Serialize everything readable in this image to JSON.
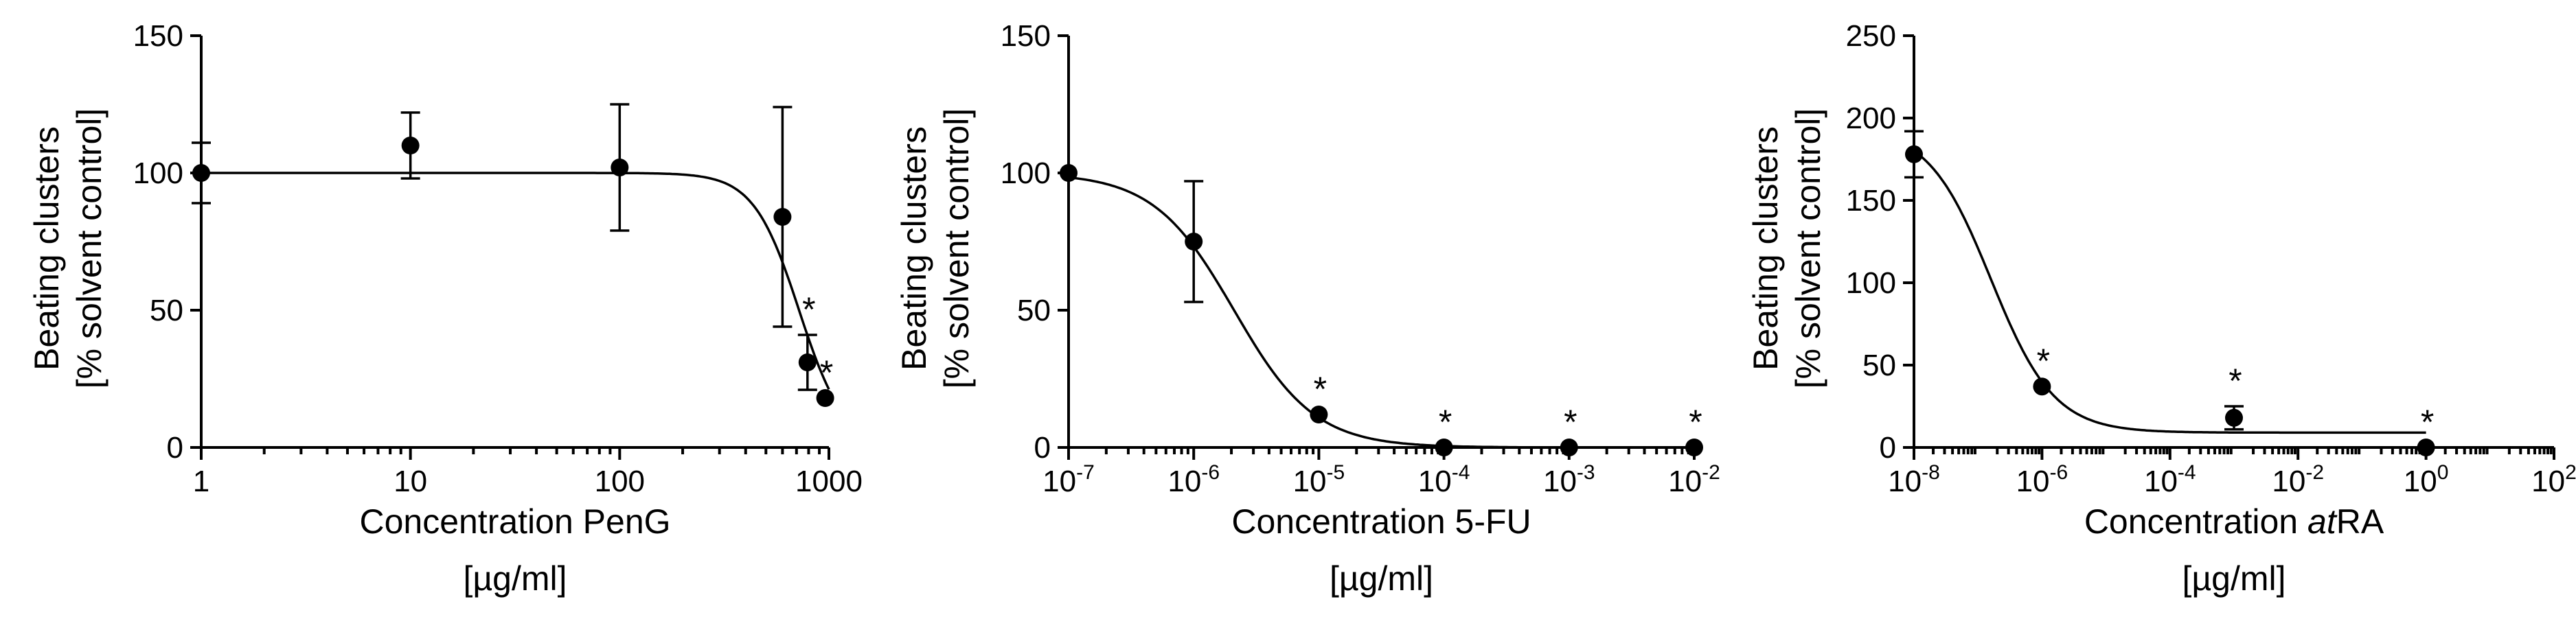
{
  "chart_data": [
    {
      "type": "scatter",
      "x_scale": "log",
      "xlim": [
        1,
        1000
      ],
      "ylim": [
        0,
        150
      ],
      "x_ticks": [
        {
          "value": 1,
          "label": "1"
        },
        {
          "value": 10,
          "label": "10"
        },
        {
          "value": 100,
          "label": "100"
        },
        {
          "value": 1000,
          "label": "1000"
        }
      ],
      "y_ticks": [
        {
          "value": 0,
          "label": "0"
        },
        {
          "value": 50,
          "label": "50"
        },
        {
          "value": 100,
          "label": "100"
        },
        {
          "value": 150,
          "label": "150"
        }
      ],
      "xlabel_lines": [
        "Concentration PenG",
        "[µg/ml]"
      ],
      "ylabel_lines": [
        "Beating clusters",
        "[% solvent control]"
      ],
      "points": [
        {
          "x": 1,
          "y": 100,
          "err": 11,
          "star": false
        },
        {
          "x": 10,
          "y": 110,
          "err": 12,
          "star": false
        },
        {
          "x": 100,
          "y": 102,
          "err": 23,
          "star": false
        },
        {
          "x": 600,
          "y": 84,
          "err": 40,
          "star": false
        },
        {
          "x": 790,
          "y": 31,
          "err": 10,
          "star": true
        },
        {
          "x": 960,
          "y": 18,
          "err": 0,
          "star": true
        }
      ],
      "significance_marker": "*",
      "fit": {
        "top": 100,
        "bottom": 0,
        "ec50": 720,
        "hill": 4.0,
        "x_from": 1,
        "x_to": 1000
      }
    },
    {
      "type": "scatter",
      "x_scale": "log",
      "xlim": [
        1e-07,
        0.01
      ],
      "ylim": [
        0,
        150
      ],
      "x_ticks": [
        {
          "value": 1e-07,
          "base": "10",
          "exp": "-7"
        },
        {
          "value": 1e-06,
          "base": "10",
          "exp": "-6"
        },
        {
          "value": 1e-05,
          "base": "10",
          "exp": "-5"
        },
        {
          "value": 0.0001,
          "base": "10",
          "exp": "-4"
        },
        {
          "value": 0.001,
          "base": "10",
          "exp": "-3"
        },
        {
          "value": 0.01,
          "base": "10",
          "exp": "-2"
        }
      ],
      "y_ticks": [
        {
          "value": 0,
          "label": "0"
        },
        {
          "value": 50,
          "label": "50"
        },
        {
          "value": 100,
          "label": "100"
        },
        {
          "value": 150,
          "label": "150"
        }
      ],
      "xlabel_lines": [
        "Concentration 5-FU",
        "[µg/ml]"
      ],
      "ylabel_lines": [
        "Beating clusters",
        "[% solvent control]"
      ],
      "points": [
        {
          "x": 1e-07,
          "y": 100,
          "err": 0,
          "star": false
        },
        {
          "x": 1e-06,
          "y": 75,
          "err": 22,
          "star": false
        },
        {
          "x": 1e-05,
          "y": 12,
          "err": 0,
          "star": true
        },
        {
          "x": 0.0001,
          "y": 0,
          "err": 0,
          "star": true
        },
        {
          "x": 0.001,
          "y": 0,
          "err": 0,
          "star": true
        },
        {
          "x": 0.01,
          "y": 0,
          "err": 0,
          "star": true
        }
      ],
      "significance_marker": "*",
      "fit": {
        "top": 100,
        "bottom": 0,
        "ec50": 2.1e-06,
        "hill": 1.35,
        "x_from": 1e-07,
        "x_to": 0.01
      }
    },
    {
      "type": "scatter",
      "x_scale": "log",
      "xlim": [
        1e-08,
        100.0
      ],
      "ylim": [
        0,
        250
      ],
      "x_ticks": [
        {
          "value": 1e-08,
          "base": "10",
          "exp": "-8"
        },
        {
          "value": 1e-06,
          "base": "10",
          "exp": "-6"
        },
        {
          "value": 0.0001,
          "base": "10",
          "exp": "-4"
        },
        {
          "value": 0.01,
          "base": "10",
          "exp": "-2"
        },
        {
          "value": 1,
          "base": "10",
          "exp": "0"
        },
        {
          "value": 100.0,
          "base": "10",
          "exp": "2"
        }
      ],
      "y_ticks": [
        {
          "value": 0,
          "label": "0"
        },
        {
          "value": 50,
          "label": "50"
        },
        {
          "value": 100,
          "label": "100"
        },
        {
          "value": 150,
          "label": "150"
        },
        {
          "value": 200,
          "label": "200"
        },
        {
          "value": 250,
          "label": "250"
        }
      ],
      "xlabel_parts": [
        {
          "text": "Concentration ",
          "italic": false
        },
        {
          "text": "at",
          "italic": true
        },
        {
          "text": "RA",
          "italic": false
        }
      ],
      "xlabel_unit": "[µg/ml]",
      "ylabel_lines": [
        "Beating clusters",
        "[% solvent control]"
      ],
      "points": [
        {
          "x": 1e-08,
          "y": 178,
          "err": 14,
          "star": false
        },
        {
          "x": 1e-06,
          "y": 37,
          "err": 0,
          "star": true
        },
        {
          "x": 0.001,
          "y": 18,
          "err": 7,
          "star": true
        },
        {
          "x": 1,
          "y": 0,
          "err": 0,
          "star": true
        }
      ],
      "significance_marker": "*",
      "fit": {
        "top": 195,
        "bottom": 9,
        "ec50": 1.6e-07,
        "hill": 0.88,
        "x_from": 1e-08,
        "x_to": 1.0
      }
    }
  ]
}
